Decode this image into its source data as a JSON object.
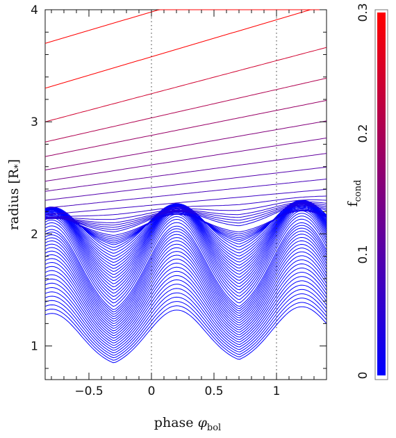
{
  "chart_data": {
    "type": "line",
    "xlabel": "phase",
    "xlabel_symbol": "φ",
    "xlabel_sub": "bol",
    "ylabel": "radius [R",
    "ylabel_symbol": "*",
    "ylabel_close": "]",
    "xlim": [
      -0.85,
      1.4
    ],
    "ylim": [
      0.7,
      4.0
    ],
    "xticks": [
      -0.5,
      0,
      0.5,
      1
    ],
    "xtick_labels": [
      "−0.5",
      "0",
      "0.5",
      "1"
    ],
    "yticks": [
      1,
      2,
      3,
      4
    ],
    "ytick_labels": [
      "1",
      "2",
      "3",
      "4"
    ],
    "reference_lines_x": [
      0,
      1
    ],
    "period": 1.0,
    "description_trajectories": "mass-shell radius trajectories, coloured by f_cond",
    "colorbar": {
      "label": "f",
      "label_sub": "cond",
      "range": [
        0,
        0.3
      ],
      "ticks": [
        0,
        0.1,
        0.2,
        0.3
      ],
      "tick_labels": [
        "0",
        "0.1",
        "0.2",
        "0.3"
      ],
      "color_low": "#0000ff",
      "color_high": "#ff0000"
    },
    "shell_start_radii": [
      0.78,
      0.8,
      0.82,
      0.84,
      0.86,
      0.88,
      0.9,
      0.92,
      0.94,
      0.96,
      0.98,
      1.0,
      1.02,
      1.04,
      1.06,
      1.08,
      1.1,
      1.12,
      1.14,
      1.16,
      1.18,
      1.2,
      1.22,
      1.25,
      1.28,
      1.31,
      1.34,
      1.37,
      1.4,
      1.43,
      1.46,
      1.49,
      1.52,
      1.55,
      1.58,
      1.61,
      1.64,
      1.67,
      1.7,
      1.73,
      1.76,
      1.79,
      1.82,
      1.85,
      1.87,
      1.89,
      1.91,
      1.93,
      1.95,
      1.97,
      1.99,
      2.01,
      2.03,
      2.05,
      2.08,
      2.12,
      2.17,
      2.23,
      2.3,
      2.38,
      2.47,
      2.57,
      2.69,
      2.82,
      3.0,
      3.3,
      3.7
    ]
  }
}
